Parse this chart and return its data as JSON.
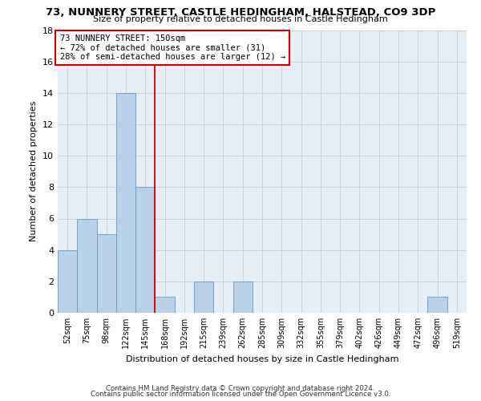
{
  "title": "73, NUNNERY STREET, CASTLE HEDINGHAM, HALSTEAD, CO9 3DP",
  "subtitle": "Size of property relative to detached houses in Castle Hedingham",
  "xlabel": "Distribution of detached houses by size in Castle Hedingham",
  "ylabel": "Number of detached properties",
  "bar_labels": [
    "52sqm",
    "75sqm",
    "98sqm",
    "122sqm",
    "145sqm",
    "168sqm",
    "192sqm",
    "215sqm",
    "239sqm",
    "262sqm",
    "285sqm",
    "309sqm",
    "332sqm",
    "355sqm",
    "379sqm",
    "402sqm",
    "426sqm",
    "449sqm",
    "472sqm",
    "496sqm",
    "519sqm"
  ],
  "bar_values": [
    4,
    6,
    5,
    14,
    8,
    1,
    0,
    2,
    0,
    2,
    0,
    0,
    0,
    0,
    0,
    0,
    0,
    0,
    0,
    1,
    0
  ],
  "bar_color": "#b8d0e8",
  "bar_edgecolor": "#6699cc",
  "bar_width": 1.0,
  "ylim": [
    0,
    18
  ],
  "yticks": [
    0,
    2,
    4,
    6,
    8,
    10,
    12,
    14,
    16,
    18
  ],
  "vline_x": 4.5,
  "vline_color": "#cc0000",
  "annotation_line1": "73 NUNNERY STREET: 150sqm",
  "annotation_line2": "← 72% of detached houses are smaller (31)",
  "annotation_line3": "28% of semi-detached houses are larger (12) →",
  "annotation_box_color": "#cc0000",
  "annotation_box_facecolor": "white",
  "footer1": "Contains HM Land Registry data © Crown copyright and database right 2024.",
  "footer2": "Contains public sector information licensed under the Open Government Licence v3.0.",
  "background_color": "#e8eef5",
  "grid_color": "#c5cdd8"
}
